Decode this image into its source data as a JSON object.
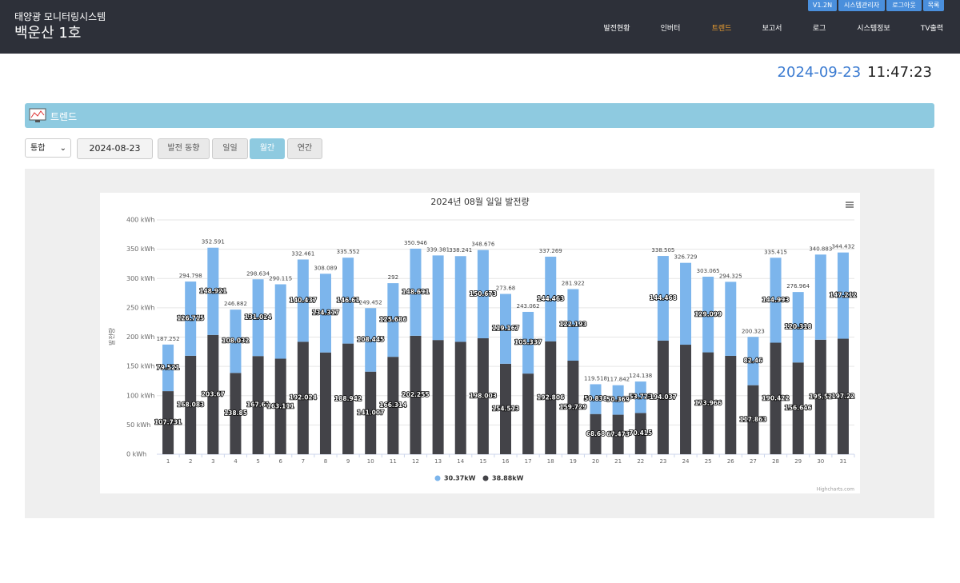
{
  "header": {
    "subtitle": "태양광 모니터링시스템",
    "title": "백운산 1호",
    "top_buttons": [
      "V1.2N",
      "시스템관리자",
      "로그아웃",
      "목록"
    ],
    "nav": [
      "발전현황",
      "인버터",
      "트렌드",
      "보고서",
      "로그",
      "시스템정보",
      "TV출력"
    ]
  },
  "clock": {
    "date": "2024-09-23",
    "time": "11:47:23"
  },
  "section": {
    "title": "트렌드"
  },
  "controls": {
    "select": "통합",
    "date": "2024-08-23",
    "buttons": [
      "발전 동향",
      "일일",
      "월간",
      "연간"
    ]
  },
  "chart_data": {
    "type": "stacked-bar",
    "title": "2024년 08월 일일 발전량",
    "y_label": "발전량",
    "credit": "Highcharts.com",
    "categories": [
      "1",
      "2",
      "3",
      "4",
      "5",
      "6",
      "7",
      "8",
      "9",
      "10",
      "11",
      "12",
      "13",
      "14",
      "15",
      "16",
      "17",
      "18",
      "19",
      "20",
      "21",
      "22",
      "23",
      "24",
      "25",
      "26",
      "27",
      "28",
      "29",
      "30",
      "31"
    ],
    "series": [
      {
        "name": "30.37kW",
        "color": "#7cb5ec",
        "values": [
          79.521,
          126.715,
          148.921,
          108.032,
          131.024,
          127.004,
          140.437,
          134.317,
          146.61,
          108.445,
          125.686,
          148.691,
          144.381,
          146.241,
          150.673,
          119.167,
          105.337,
          144.463,
          122.193,
          50.838,
          50.369,
          53.723,
          144.468,
          139.729,
          129.099,
          126.325,
          82.46,
          144.993,
          120.318,
          145.363,
          147.212
        ],
        "value_labels": [
          "79.521",
          "126.715",
          "148.921",
          "108.032",
          "131.024",
          null,
          "140.437",
          "134.317",
          "146.61",
          "108.445",
          "125.686",
          "148.691",
          null,
          null,
          "150.673",
          "119.167",
          "105.337",
          "144.463",
          "122.193",
          "50.838",
          "50.369",
          "53.723",
          "144.468",
          null,
          "129.099",
          null,
          "82.46",
          "144.993",
          "120.318",
          null,
          "147.212"
        ]
      },
      {
        "name": "38.88kW",
        "color": "#434348",
        "values": [
          107.731,
          168.083,
          203.67,
          138.85,
          167.61,
          163.111,
          192.024,
          173.772,
          188.942,
          141.007,
          166.314,
          202.255,
          195,
          192,
          198.003,
          154.513,
          137.725,
          192.806,
          159.729,
          68.68,
          67.473,
          70.415,
          194.037,
          187,
          173.966,
          168,
          117.863,
          190.422,
          156.646,
          195.52,
          197.22
        ],
        "value_labels": [
          "107.731",
          "168.083",
          "203.67",
          "138.85",
          "167.61",
          "163.111",
          "192.024",
          null,
          "188.942",
          "141.007",
          "166.314",
          "202.255",
          null,
          null,
          "198.003",
          "154.513",
          null,
          "192.806",
          "159.729",
          "68.68",
          "67.473",
          "70.415",
          "194.037",
          null,
          "173.966",
          null,
          "117.863",
          "190.422",
          "156.646",
          "195.52",
          "197.22"
        ]
      }
    ],
    "totals": [
      187.252,
      294.798,
      352.591,
      246.882,
      298.634,
      290.115,
      332.461,
      308.089,
      335.552,
      249.452,
      292,
      350.946,
      339.381,
      338.241,
      348.676,
      273.68,
      243.062,
      337.269,
      281.922,
      119.518,
      117.842,
      124.138,
      338.505,
      326.729,
      303.065,
      294.325,
      200.323,
      335.415,
      276.964,
      340.883,
      344.432
    ],
    "ylim": [
      0,
      400
    ],
    "yticks": [
      {
        "value": 0,
        "label": "0 kWh"
      },
      {
        "value": 50,
        "label": "50 kWh"
      },
      {
        "value": 100,
        "label": "100 kWh"
      },
      {
        "value": 150,
        "label": "150 kWh"
      },
      {
        "value": 200,
        "label": "200 kWh"
      },
      {
        "value": 250,
        "label": "250 kWh"
      },
      {
        "value": 300,
        "label": "300 kWh"
      },
      {
        "value": 350,
        "label": "350 kWh"
      },
      {
        "value": 400,
        "label": "400 kWh"
      }
    ],
    "grid": true,
    "legend": "bottom"
  }
}
